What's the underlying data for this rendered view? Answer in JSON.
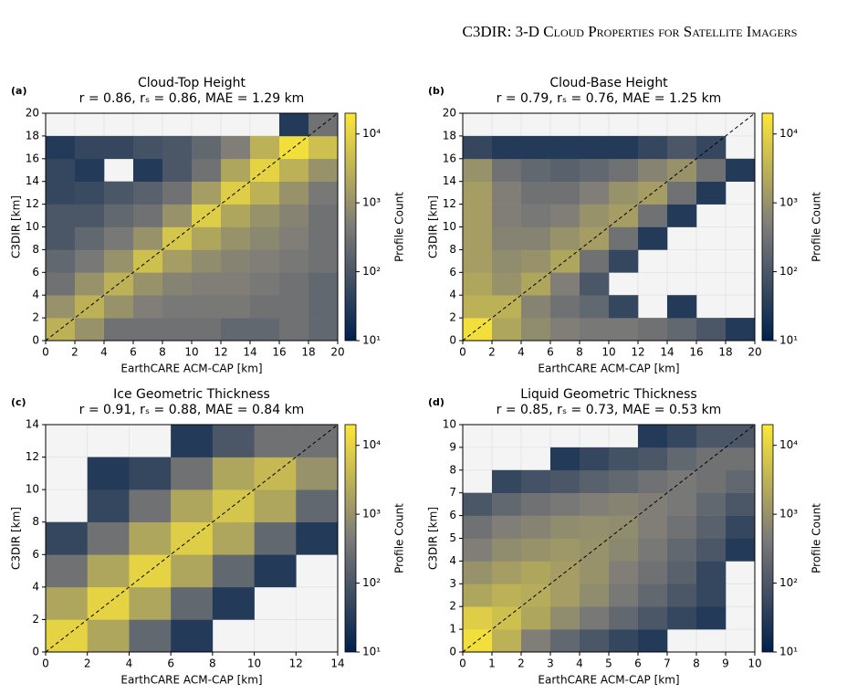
{
  "header": {
    "running_title": "C3DIR: 3-D Cloud Properties for Satellite Imagers"
  },
  "chart_data": [
    {
      "type": "heatmap",
      "panel_label": "(a)",
      "title": "Cloud-Top Height",
      "subtitle": "r = 0.86, rₛ = 0.86, MAE = 1.29 km",
      "xlabel": "EarthCARE ACM-CAP [km]",
      "ylabel": "C3DIR [km]",
      "colorbar_label": "Profile Count",
      "xlim": [
        0,
        20
      ],
      "ylim": [
        0,
        20
      ],
      "xticks": [
        0,
        2,
        4,
        6,
        8,
        10,
        12,
        14,
        16,
        18,
        20
      ],
      "yticks": [
        0,
        2,
        4,
        6,
        8,
        10,
        12,
        14,
        16,
        18,
        20
      ],
      "clim": [
        10,
        20000
      ],
      "log_color": true,
      "cticks": [
        {
          "value": 10,
          "label": "10¹"
        },
        {
          "value": 100,
          "label": "10²"
        },
        {
          "value": 1000,
          "label": "10³"
        },
        {
          "value": 10000,
          "label": "10⁴"
        }
      ],
      "colormap": [
        "#00204d",
        "#7c7b78",
        "#fde737"
      ],
      "background": "#f4f4f4",
      "grid": true,
      "values": [
        [
          3000,
          1000,
          300,
          300,
          300,
          300,
          200,
          200,
          300,
          200
        ],
        [
          1000,
          3000,
          1000,
          500,
          400,
          400,
          400,
          300,
          300,
          200
        ],
        [
          300,
          1000,
          3000,
          1000,
          600,
          500,
          500,
          400,
          300,
          200
        ],
        [
          200,
          400,
          1000,
          5000,
          1500,
          800,
          600,
          500,
          400,
          300
        ],
        [
          100,
          200,
          400,
          1000,
          6000,
          2000,
          1000,
          700,
          500,
          300
        ],
        [
          100,
          100,
          200,
          300,
          1000,
          8000,
          2000,
          1000,
          600,
          300
        ],
        [
          50,
          60,
          100,
          150,
          300,
          1500,
          8000,
          3000,
          1000,
          400
        ],
        [
          50,
          30,
          null,
          30,
          100,
          300,
          2000,
          10000,
          3000,
          1000
        ],
        [
          30,
          50,
          50,
          80,
          100,
          200,
          500,
          3000,
          15000,
          5000
        ],
        [
          null,
          null,
          null,
          null,
          null,
          null,
          null,
          null,
          30,
          300
        ]
      ]
    },
    {
      "type": "heatmap",
      "panel_label": "(b)",
      "title": "Cloud-Base Height",
      "subtitle": "r = 0.79, rₛ = 0.76, MAE = 1.25 km",
      "xlabel": "EarthCARE ACM-CAP [km]",
      "ylabel": "C3DIR [km]",
      "colorbar_label": "Profile Count",
      "xlim": [
        0,
        20
      ],
      "ylim": [
        0,
        20
      ],
      "xticks": [
        0,
        2,
        4,
        6,
        8,
        10,
        12,
        14,
        16,
        18,
        20
      ],
      "yticks": [
        0,
        2,
        4,
        6,
        8,
        10,
        12,
        14,
        16,
        18,
        20
      ],
      "clim": [
        10,
        20000
      ],
      "log_color": true,
      "cticks": [
        {
          "value": 10,
          "label": "10¹"
        },
        {
          "value": 100,
          "label": "10²"
        },
        {
          "value": 1000,
          "label": "10³"
        },
        {
          "value": 10000,
          "label": "10⁴"
        }
      ],
      "colormap": [
        "#00204d",
        "#7c7b78",
        "#fde737"
      ],
      "background": "#f4f4f4",
      "grid": true,
      "values": [
        [
          15000,
          2000,
          800,
          500,
          400,
          400,
          300,
          200,
          100,
          30
        ],
        [
          3000,
          3000,
          600,
          300,
          200,
          50,
          null,
          30,
          null,
          null
        ],
        [
          2000,
          1000,
          2000,
          500,
          100,
          null,
          null,
          null,
          null,
          null
        ],
        [
          1500,
          800,
          1000,
          2000,
          300,
          50,
          null,
          null,
          null,
          null
        ],
        [
          1500,
          600,
          600,
          1000,
          1500,
          300,
          30,
          null,
          null,
          null
        ],
        [
          1500,
          500,
          400,
          500,
          1000,
          1500,
          300,
          30,
          null,
          null
        ],
        [
          1500,
          500,
          300,
          300,
          500,
          1000,
          1500,
          300,
          30,
          null
        ],
        [
          1000,
          300,
          200,
          150,
          200,
          300,
          600,
          1000,
          300,
          30
        ],
        [
          50,
          30,
          30,
          30,
          30,
          30,
          50,
          100,
          50,
          null
        ],
        [
          null,
          null,
          null,
          null,
          null,
          null,
          null,
          null,
          null,
          null
        ]
      ]
    },
    {
      "type": "heatmap",
      "panel_label": "(c)",
      "title": "Ice Geometric Thickness",
      "subtitle": "r = 0.91, rₛ = 0.88, MAE = 0.84 km",
      "xlabel": "EarthCARE ACM-CAP [km]",
      "ylabel": "C3DIR [km]",
      "colorbar_label": "Profile Count",
      "xlim": [
        0,
        14
      ],
      "ylim": [
        0,
        14
      ],
      "xticks": [
        0,
        2,
        4,
        6,
        8,
        10,
        12,
        14
      ],
      "yticks": [
        0,
        2,
        4,
        6,
        8,
        10,
        12,
        14
      ],
      "clim": [
        10,
        20000
      ],
      "log_color": true,
      "cticks": [
        {
          "value": 10,
          "label": "10¹"
        },
        {
          "value": 100,
          "label": "10²"
        },
        {
          "value": 1000,
          "label": "10³"
        },
        {
          "value": 10000,
          "label": "10⁴"
        }
      ],
      "colormap": [
        "#00204d",
        "#7c7b78",
        "#fde737"
      ],
      "background": "#f4f4f4",
      "grid": true,
      "values": [
        [
          10000,
          2000,
          200,
          30,
          null,
          null,
          null
        ],
        [
          2000,
          10000,
          2000,
          200,
          30,
          null,
          null
        ],
        [
          300,
          2000,
          10000,
          2000,
          200,
          30,
          null
        ],
        [
          50,
          300,
          2000,
          8000,
          2000,
          200,
          30
        ],
        [
          null,
          50,
          300,
          2000,
          6000,
          2000,
          200
        ],
        [
          null,
          30,
          50,
          300,
          2000,
          4000,
          1000
        ],
        [
          null,
          null,
          null,
          30,
          100,
          300,
          300
        ]
      ]
    },
    {
      "type": "heatmap",
      "panel_label": "(d)",
      "title": "Liquid Geometric Thickness",
      "subtitle": "r = 0.85, rₛ = 0.73, MAE = 0.53 km",
      "xlabel": "EarthCARE ACM-CAP [km]",
      "ylabel": "C3DIR [km]",
      "colorbar_label": "Profile Count",
      "xlim": [
        0,
        10
      ],
      "ylim": [
        0,
        10
      ],
      "xticks": [
        0,
        1,
        2,
        3,
        4,
        5,
        6,
        7,
        8,
        9,
        10
      ],
      "yticks": [
        0,
        1,
        2,
        3,
        4,
        5,
        6,
        7,
        8,
        9,
        10
      ],
      "clim": [
        10,
        20000
      ],
      "log_color": true,
      "cticks": [
        {
          "value": 10,
          "label": "10¹"
        },
        {
          "value": 100,
          "label": "10²"
        },
        {
          "value": 1000,
          "label": "10³"
        },
        {
          "value": 10000,
          "label": "10⁴"
        }
      ],
      "colormap": [
        "#00204d",
        "#7c7b78",
        "#fde737"
      ],
      "background": "#f4f4f4",
      "grid": true,
      "values": [
        [
          15000,
          3000,
          500,
          200,
          100,
          50,
          30,
          null,
          null,
          null
        ],
        [
          8000,
          5000,
          2000,
          800,
          400,
          200,
          100,
          50,
          30,
          null
        ],
        [
          2000,
          3000,
          2500,
          1500,
          800,
          400,
          200,
          100,
          50,
          null
        ],
        [
          1000,
          1500,
          2000,
          1500,
          1000,
          500,
          300,
          150,
          50,
          null
        ],
        [
          500,
          800,
          1000,
          1200,
          1000,
          700,
          400,
          200,
          100,
          30
        ],
        [
          300,
          500,
          600,
          800,
          900,
          800,
          500,
          300,
          150,
          50
        ],
        [
          100,
          200,
          300,
          400,
          500,
          600,
          500,
          400,
          200,
          100
        ],
        [
          null,
          50,
          80,
          100,
          150,
          200,
          300,
          400,
          300,
          200
        ],
        [
          null,
          null,
          null,
          30,
          50,
          80,
          100,
          200,
          300,
          300
        ],
        [
          null,
          null,
          null,
          null,
          null,
          null,
          30,
          50,
          100,
          100
        ]
      ]
    }
  ]
}
